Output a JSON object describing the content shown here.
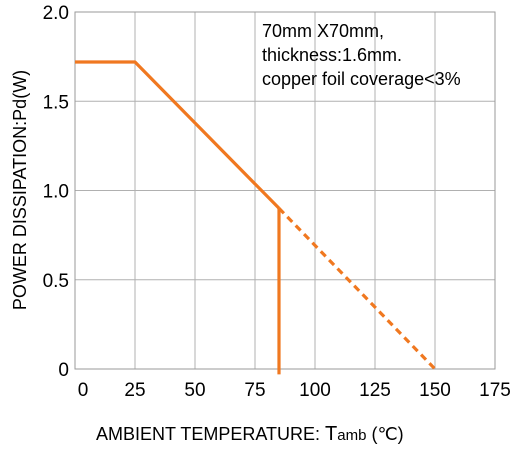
{
  "chart_data": {
    "type": "line",
    "xlabel": "AMBIENT TEMPERATURE: ",
    "xlabel_symbol": "T",
    "xlabel_subscript": "amb",
    "xlabel_unit": " (℃)",
    "ylabel": "POWER DISSIPATION:Pd(W)",
    "xlim": [
      0,
      175
    ],
    "ylim": [
      0,
      2.0
    ],
    "x_ticks": [
      0,
      25,
      50,
      75,
      100,
      125,
      150,
      175
    ],
    "x_tick_labels": [
      "0",
      "25",
      "50",
      "75",
      "100",
      "125",
      "150",
      "175"
    ],
    "y_ticks": [
      0,
      0.5,
      1.0,
      1.5,
      2.0
    ],
    "y_tick_labels": [
      "0",
      "0.5",
      "1.0",
      "1.5",
      "2.0"
    ],
    "grid": true,
    "annotations": [
      "70mm X70mm,",
      "thickness:1.6mm.",
      "copper foil coverage<3%"
    ],
    "series": [
      {
        "style": "solid",
        "color": "#f07820",
        "points": [
          [
            0,
            1.72
          ],
          [
            25,
            1.72
          ],
          [
            85,
            0.9
          ]
        ]
      },
      {
        "style": "dashed",
        "color": "#f07820",
        "points": [
          [
            85,
            0.9
          ],
          [
            150,
            0.0
          ]
        ]
      },
      {
        "style": "solid",
        "color": "#f07820",
        "points": [
          [
            85,
            0.9
          ],
          [
            85,
            -0.03
          ]
        ]
      }
    ]
  }
}
